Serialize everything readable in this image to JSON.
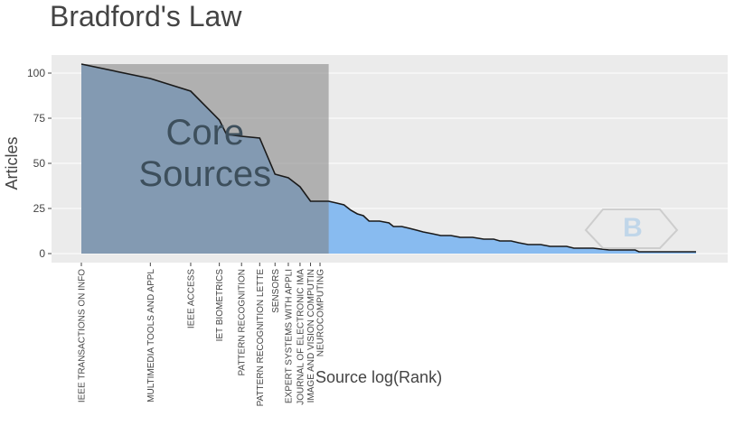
{
  "title": "Bradford's Law",
  "chart_data": {
    "type": "area",
    "title": "Bradford's Law",
    "xlabel": "Source log(Rank)",
    "ylabel": "Articles",
    "ylim": [
      -5,
      110
    ],
    "x_scale": "log",
    "yticks": [
      0,
      25,
      50,
      75,
      100
    ],
    "grid": true,
    "annotation": "Core\nSources",
    "core_zone_max_rank": 12,
    "colors": {
      "fill": "#88bbf0",
      "core_overlay": "#808080",
      "line": "#1a1a1a",
      "plot_bg": "#ebebeb",
      "grid": "#ffffff"
    },
    "x_tick_labels": [
      {
        "rank": 1,
        "label": "IEEE TRANSACTIONS ON INFO"
      },
      {
        "rank": 2,
        "label": "MULTIMEDIA TOOLS AND APPL"
      },
      {
        "rank": 3,
        "label": "IEEE ACCESS"
      },
      {
        "rank": 4,
        "label": "IET BIOMETRICS"
      },
      {
        "rank": 5,
        "label": "PATTERN RECOGNITION"
      },
      {
        "rank": 6,
        "label": "PATTERN RECOGNITION LETTE"
      },
      {
        "rank": 7,
        "label": "SENSORS"
      },
      {
        "rank": 8,
        "label": "EXPERT SYSTEMS WITH APPLI"
      },
      {
        "rank": 9,
        "label": "JOURNAL OF ELECTRONIC IMA"
      },
      {
        "rank": 10,
        "label": "IMAGE AND VISION COMPUTIN"
      },
      {
        "rank": 11,
        "label": "NEUROCOMPUTING"
      }
    ],
    "series": [
      {
        "points": [
          [
            1,
            105
          ],
          [
            2,
            97
          ],
          [
            3,
            90
          ],
          [
            4,
            74
          ],
          [
            4.3,
            66
          ],
          [
            5,
            65
          ],
          [
            6,
            64
          ],
          [
            7,
            44
          ],
          [
            8,
            42
          ],
          [
            9,
            37
          ],
          [
            10,
            29
          ],
          [
            11,
            29
          ],
          [
            12,
            29
          ],
          [
            13,
            28
          ],
          [
            14,
            27
          ],
          [
            15,
            24
          ],
          [
            16,
            22
          ],
          [
            17,
            21
          ],
          [
            18,
            18
          ],
          [
            20,
            18
          ],
          [
            22,
            17
          ],
          [
            23,
            15
          ],
          [
            25,
            15
          ],
          [
            27,
            14
          ],
          [
            29,
            13
          ],
          [
            31,
            12
          ],
          [
            34,
            11
          ],
          [
            37,
            10
          ],
          [
            41,
            10
          ],
          [
            45,
            9
          ],
          [
            51,
            9
          ],
          [
            57,
            8
          ],
          [
            63,
            8
          ],
          [
            67,
            7
          ],
          [
            75,
            7
          ],
          [
            81,
            6
          ],
          [
            89,
            5
          ],
          [
            101,
            5
          ],
          [
            111,
            4
          ],
          [
            131,
            4
          ],
          [
            141,
            3
          ],
          [
            171,
            3
          ],
          [
            201,
            2
          ],
          [
            261,
            2
          ],
          [
            271,
            1
          ],
          [
            481,
            1
          ]
        ]
      }
    ]
  }
}
